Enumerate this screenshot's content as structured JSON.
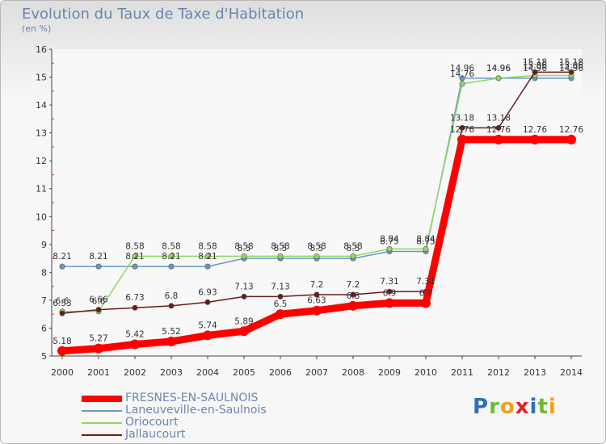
{
  "chart_data": {
    "type": "line",
    "title": "Evolution du Taux de Taxe d'Habitation",
    "subtitle": "(en %)",
    "x": [
      "2000",
      "2001",
      "2002",
      "2003",
      "2004",
      "2005",
      "2006",
      "2007",
      "2008",
      "2009",
      "2010",
      "2011",
      "2012",
      "2013",
      "2014"
    ],
    "ylim": [
      5,
      16
    ],
    "yticks": [
      5,
      6,
      7,
      8,
      9,
      10,
      11,
      12,
      13,
      14,
      15,
      16
    ],
    "grid": false,
    "series": [
      {
        "name": "FRESNES-EN-SAULNOIS",
        "color": "#ff0000",
        "values": [
          5.18,
          5.27,
          5.42,
          5.52,
          5.74,
          5.89,
          6.5,
          6.63,
          6.8,
          6.9,
          6.9,
          12.76,
          12.76,
          12.76,
          12.76
        ],
        "labels": [
          "5.18",
          "5.27",
          "5.42",
          "5.52",
          "5.74",
          "5.89",
          "6.5",
          "6.63",
          "6.8",
          "6.9",
          "6.9",
          "12.76",
          "12.76",
          "12.76",
          "12.76"
        ]
      },
      {
        "name": "Laneuveville-en-Saulnois",
        "color": "#6a96c9",
        "values": [
          8.21,
          8.21,
          8.21,
          8.21,
          8.21,
          8.5,
          8.5,
          8.5,
          8.5,
          8.75,
          8.75,
          14.96,
          14.96,
          14.96,
          14.96
        ],
        "labels": [
          "8.21",
          "8.21",
          "8.21",
          "8.21",
          "8.21",
          "8.5",
          "8.5",
          "8.5",
          "8.5",
          "8.75",
          "8.75",
          "14.96",
          "14.96",
          "14.96",
          "14.96"
        ]
      },
      {
        "name": "Oriocourt",
        "color": "#90d860",
        "values": [
          6.6,
          6.6,
          8.58,
          8.58,
          8.58,
          8.58,
          8.58,
          8.58,
          8.58,
          8.84,
          8.84,
          14.76,
          14.96,
          15.06,
          15.06
        ],
        "labels": [
          "6.6",
          "6.6",
          "8.58",
          "8.58",
          "8.58",
          "8.58",
          "8.58",
          "8.58",
          "8.58",
          "8.84",
          "8.84",
          "14.76",
          "14.96",
          "15.06",
          "15.06"
        ]
      },
      {
        "name": "Jallaucourt",
        "color": "#6b1a1a",
        "values": [
          6.53,
          6.66,
          6.73,
          6.8,
          6.93,
          7.13,
          7.13,
          7.2,
          7.2,
          7.31,
          7.31,
          13.18,
          13.18,
          15.18,
          15.18
        ],
        "labels": [
          "6.53",
          "6.66",
          "6.73",
          "6.8",
          "6.93",
          "7.13",
          "7.13",
          "7.2",
          "7.2",
          "7.31",
          "7.31",
          "13.18",
          "13.18",
          "15.18",
          "15.18"
        ]
      }
    ]
  },
  "brand": {
    "letters": [
      "P",
      "r",
      "o",
      "x",
      "i",
      "t",
      "i"
    ],
    "colors": [
      "#2d6fb8",
      "#6fb836",
      "#f2a019",
      "#d9262b",
      "#2d6fb8",
      "#6fb836",
      "#f2a019"
    ]
  }
}
